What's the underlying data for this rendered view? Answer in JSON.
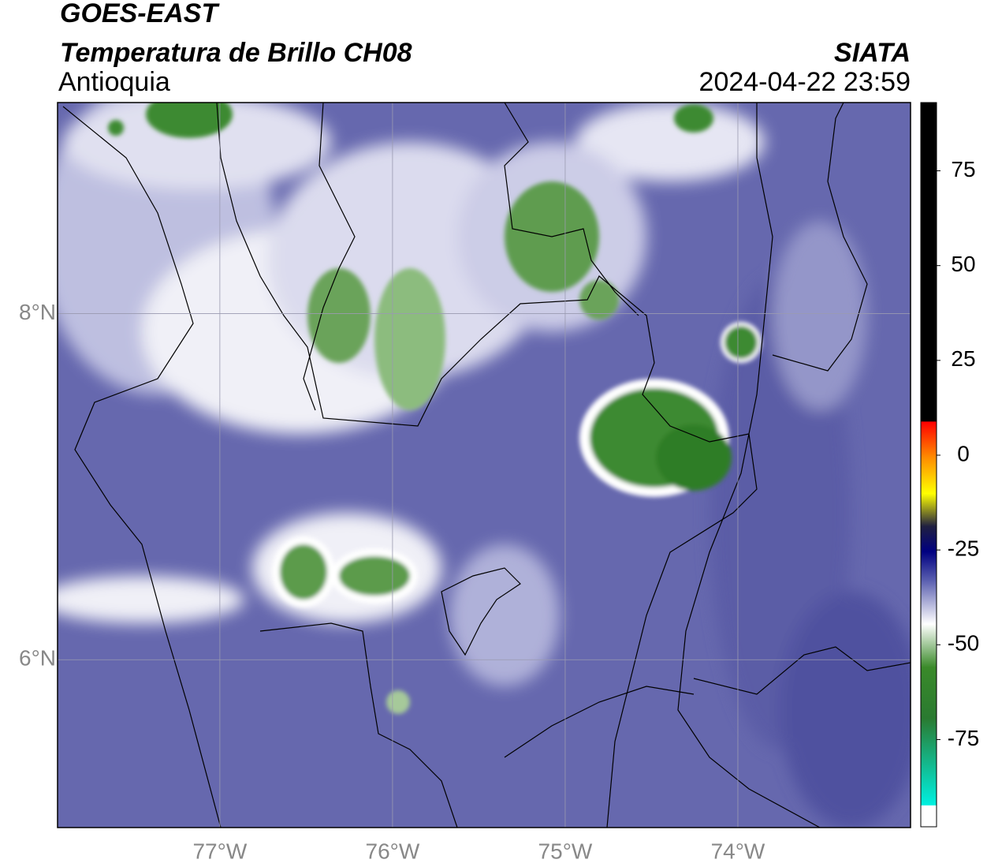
{
  "header": {
    "title": "GOES-EAST",
    "subtitle": "Temperatura de Brillo CH08",
    "region": "Antioquia",
    "source": "SIATA",
    "datetime": "2024-04-22 23:59"
  },
  "map": {
    "xlim": [
      -77.94,
      -73.0
    ],
    "ylim": [
      5.03,
      9.22
    ],
    "xticks": [
      {
        "value": -77,
        "label": "77°W"
      },
      {
        "value": -76,
        "label": "76°W"
      },
      {
        "value": -75,
        "label": "75°W"
      },
      {
        "value": -74,
        "label": "74°W"
      }
    ],
    "yticks": [
      {
        "value": 6,
        "label": "6°N"
      },
      {
        "value": 8,
        "label": "8°N"
      }
    ]
  },
  "colorbar": {
    "clim": [
      -98,
      93
    ],
    "ticks": [
      75,
      50,
      25,
      0,
      -25,
      -50,
      -75
    ]
  }
}
